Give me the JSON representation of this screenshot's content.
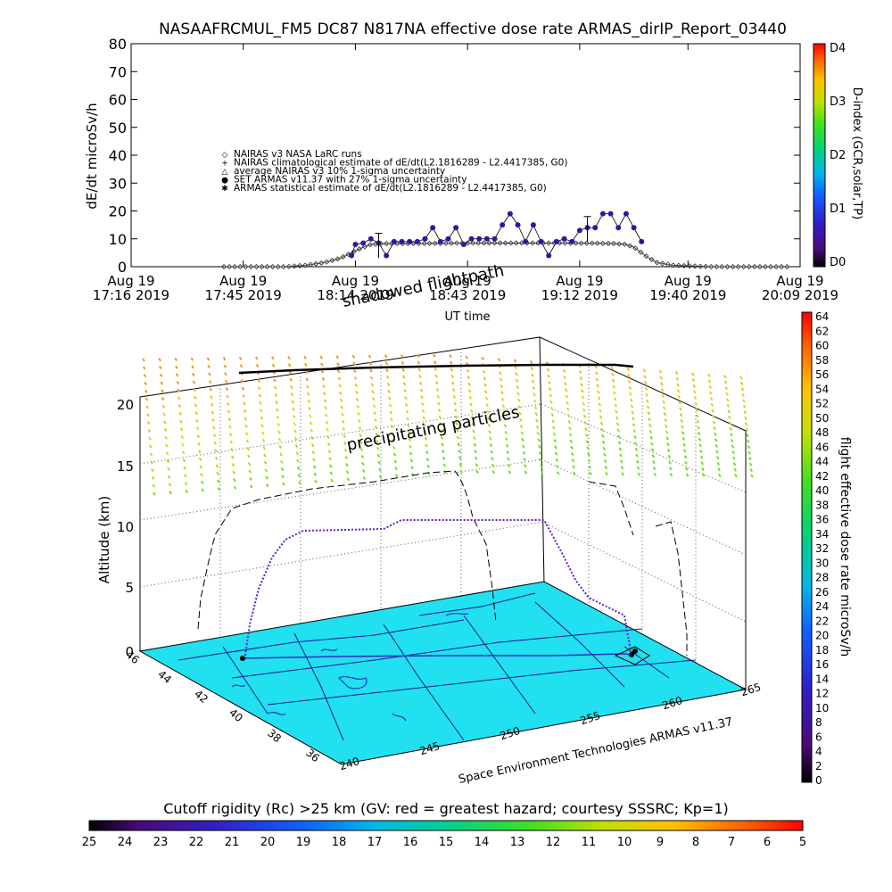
{
  "chart_data": [
    {
      "type": "line",
      "title": "NASAAFRCMUL_FM5 DC87 N817NA effective dose rate ARMAS_dirIP_Report_03440",
      "ylabel": "dE/dt microSv/h",
      "xlabel": "UT time",
      "ylim": [
        0,
        80
      ],
      "yticks": [
        "0",
        "10",
        "20",
        "30",
        "40",
        "50",
        "60",
        "70",
        "80"
      ],
      "xticks": [
        {
          "t": 0,
          "l1": "Aug 19",
          "l2": "17:16 2019"
        },
        {
          "t": 29,
          "l1": "Aug 19",
          "l2": "17:45 2019"
        },
        {
          "t": 58,
          "l1": "Aug 19",
          "l2": "18:14 2019"
        },
        {
          "t": 87,
          "l1": "Aug 19",
          "l2": "18:43 2019"
        },
        {
          "t": 116,
          "l1": "Aug 19",
          "l2": "19:12 2019"
        },
        {
          "t": 144,
          "l1": "Aug 19",
          "l2": "19:40 2019"
        },
        {
          "t": 173,
          "l1": "Aug 19",
          "l2": "20:09 2019"
        }
      ],
      "xlim": [
        0,
        173
      ],
      "legend": [
        "NAIRAS v3 NASA LaRC runs",
        "NAIRAS climatological estimate of dE/dt(L2.1816289 - L2.4417385, G0)",
        "average NAIRAS v3 10% 1-sigma uncertainty",
        "SET ARMAS v11.37 with 27% 1-sigma uncertainty",
        "ARMAS statistical estimate of dE/dt(L2.1816289 - L2.4417385, G0)"
      ],
      "legend_position": "center-left",
      "series": [
        {
          "name": "NAIRAS climatological estimate of dE/dt(L2.1816289 - L2.4417385, G0)",
          "x": [
            24,
            40,
            45,
            50,
            54,
            57,
            60,
            62,
            65,
            70,
            80,
            90,
            100,
            110,
            120,
            125,
            128,
            130,
            132,
            134,
            136,
            140,
            150,
            160,
            170
          ],
          "y": [
            0,
            0,
            0.5,
            1.5,
            3,
            5,
            7,
            8,
            8.3,
            8.3,
            8.4,
            8.5,
            8.5,
            8.5,
            8.4,
            8.3,
            8,
            7,
            5,
            3,
            1.5,
            0.5,
            0,
            0,
            0
          ]
        },
        {
          "name": "SET ARMAS v11.37 with 27% 1-sigma uncertainty",
          "x": [
            57,
            58,
            60,
            62,
            64,
            66,
            68,
            70,
            72,
            74,
            76,
            78,
            80,
            82,
            84,
            86,
            88,
            90,
            92,
            94,
            96,
            98,
            100,
            102,
            104,
            106,
            108,
            110,
            112,
            114,
            116,
            118,
            120,
            122,
            124,
            126,
            128,
            130,
            132
          ],
          "y": [
            4,
            8,
            8.5,
            10,
            8.5,
            4,
            9,
            9,
            9,
            9,
            10,
            14,
            9,
            10,
            14,
            8,
            10,
            10,
            10,
            10,
            15,
            19,
            15,
            9,
            15,
            9,
            4,
            9,
            10,
            9,
            13,
            14,
            14,
            19,
            19,
            14,
            19,
            14,
            9
          ]
        }
      ],
      "colorbar": {
        "label": "D-index (GCR,solar,TP)",
        "ticks": [
          "D0",
          "D1",
          "D2",
          "D3",
          "D4"
        ]
      }
    },
    {
      "type": "scatter",
      "title": "",
      "zlabel": "Altitude (km)",
      "zticks": [
        "0",
        "5",
        "10",
        "15",
        "20"
      ],
      "lat_ticks": [
        "46",
        "44",
        "42",
        "40",
        "38",
        "36"
      ],
      "lon_ticks": [
        "240",
        "245",
        "250",
        "255",
        "260",
        "265"
      ],
      "annotations": [
        "shadowed flightpath",
        "precipitating particles"
      ],
      "credit": "Space Environment Technologies ARMAS v11.37",
      "flight_altitude_km": [
        0,
        0,
        3,
        6,
        8,
        9.5,
        9.5,
        10.5,
        10.5,
        10.5,
        6,
        3,
        0
      ],
      "colorbar": {
        "label": "flight effective dose rate microSv/h",
        "ticks": [
          "0",
          "2",
          "4",
          "6",
          "8",
          "10",
          "12",
          "14",
          "16",
          "18",
          "20",
          "22",
          "24",
          "26",
          "28",
          "30",
          "32",
          "34",
          "36",
          "38",
          "40",
          "42",
          "44",
          "46",
          "48",
          "50",
          "52",
          "54",
          "56",
          "58",
          "60",
          "62",
          "64"
        ]
      }
    },
    {
      "type": "heatmap",
      "title": "Cutoff rigidity (Rc) >25 km (GV: red = greatest hazard; courtesy SSSRC; Kp=1)",
      "ticks": [
        "25",
        "24",
        "23",
        "22",
        "21",
        "20",
        "19",
        "18",
        "17",
        "16",
        "15",
        "14",
        "13",
        "12",
        "11",
        "10",
        "9",
        "8",
        "7",
        "6",
        "5"
      ]
    }
  ],
  "colors": {
    "armas_marker": "#2a1aa0",
    "surface": "#21e0f0",
    "map_line": "#1a1a90"
  }
}
